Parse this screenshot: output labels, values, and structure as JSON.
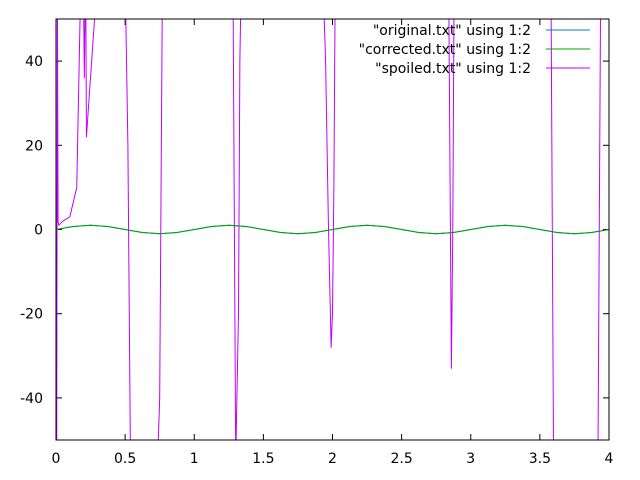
{
  "chart_data": {
    "type": "line",
    "title": "",
    "xlabel": "",
    "ylabel": "",
    "xlim": [
      0,
      4
    ],
    "ylim": [
      -50,
      50
    ],
    "grid": false,
    "legend_position": "top-right",
    "x_ticks": [
      0,
      0.5,
      1,
      1.5,
      2,
      2.5,
      3,
      3.5,
      4
    ],
    "x_tick_labels": [
      "0",
      "0.5",
      "1",
      "1.5",
      "2",
      "2.5",
      "3",
      "3.5",
      "4"
    ],
    "y_ticks": [
      -40,
      -20,
      0,
      20,
      40
    ],
    "y_tick_labels": [
      "-40",
      "-20",
      "0",
      "20",
      "40"
    ],
    "series": [
      {
        "name": "\"original.txt\" using 1:2",
        "color": "#0080c0",
        "x": [
          0,
          0.125,
          0.25,
          0.375,
          0.5,
          0.625,
          0.75,
          0.875,
          1,
          1.125,
          1.25,
          1.375,
          1.5,
          1.625,
          1.75,
          1.875,
          2,
          2.125,
          2.25,
          2.375,
          2.5,
          2.625,
          2.75,
          2.875,
          3,
          3.125,
          3.25,
          3.375,
          3.5,
          3.625,
          3.75,
          3.875,
          4
        ],
        "y": [
          0,
          0.71,
          1,
          0.71,
          0,
          -0.71,
          -1,
          -0.71,
          0,
          0.71,
          1,
          0.71,
          0,
          -0.71,
          -1,
          -0.71,
          0,
          0.71,
          1,
          0.71,
          0,
          -0.71,
          -1,
          -0.71,
          0,
          0.71,
          1,
          0.71,
          0,
          -0.71,
          -1,
          -0.71,
          0
        ]
      },
      {
        "name": "\"corrected.txt\" using 1:2",
        "color": "#00a000",
        "x": [
          0,
          0.125,
          0.25,
          0.375,
          0.5,
          0.625,
          0.75,
          0.875,
          1,
          1.125,
          1.25,
          1.375,
          1.5,
          1.625,
          1.75,
          1.875,
          2,
          2.125,
          2.25,
          2.375,
          2.5,
          2.625,
          2.75,
          2.875,
          3,
          3.125,
          3.25,
          3.375,
          3.5,
          3.625,
          3.75,
          3.875,
          4
        ],
        "y": [
          0,
          0.71,
          1,
          0.71,
          0,
          -0.71,
          -1,
          -0.71,
          0,
          0.71,
          1,
          0.71,
          0,
          -0.71,
          -1,
          -0.71,
          0,
          0.71,
          1,
          0.71,
          0,
          -0.71,
          -1,
          -0.71,
          0,
          0.71,
          1,
          0.71,
          0,
          -0.71,
          -1,
          -0.71,
          0
        ]
      },
      {
        "name": "\"spoiled.txt\" using 1:2",
        "color": "#c000ff",
        "x": [
          0,
          0.005,
          0.01,
          0.015,
          0.02,
          0.05,
          0.1,
          0.15,
          0.18,
          0.195,
          0.2,
          0.205,
          0.21,
          0.215,
          0.22,
          0.3,
          0.4,
          0.5,
          0.52,
          0.54,
          0.56,
          0.6,
          0.7,
          0.73,
          0.75,
          0.77,
          0.8,
          0.9,
          1.0,
          1.1,
          1.2,
          1.28,
          1.3,
          1.32,
          1.33,
          1.34,
          1.36,
          1.4,
          1.5,
          1.6,
          1.7,
          1.8,
          1.9,
          1.93,
          1.95,
          1.97,
          1.99,
          2.0,
          2.01,
          2.02,
          2.04,
          2.1,
          2.2,
          2.3,
          2.4,
          2.5,
          2.6,
          2.7,
          2.8,
          2.84,
          2.86,
          2.87,
          2.88,
          2.9,
          3.0,
          3.1,
          3.2,
          3.3,
          3.4,
          3.5,
          3.58,
          3.6,
          3.62,
          3.7,
          3.8,
          3.88,
          3.9,
          3.92,
          3.94,
          4.0
        ],
        "y": [
          -25,
          -60,
          60,
          2,
          1,
          2,
          3,
          10,
          60,
          60,
          52,
          36,
          52,
          60,
          22,
          60,
          60,
          60,
          20,
          -60,
          -60,
          -60,
          -60,
          -60,
          -40,
          60,
          60,
          60,
          60,
          60,
          60,
          60,
          -55,
          -20,
          40,
          60,
          60,
          60,
          60,
          60,
          60,
          60,
          60,
          60,
          40,
          2,
          -28,
          -20,
          10,
          60,
          60,
          60,
          60,
          60,
          60,
          60,
          60,
          60,
          60,
          60,
          -33,
          0,
          60,
          60,
          60,
          60,
          60,
          60,
          60,
          60,
          60,
          -60,
          -60,
          -60,
          -60,
          -60,
          -60,
          -55,
          60,
          60
        ]
      }
    ]
  }
}
